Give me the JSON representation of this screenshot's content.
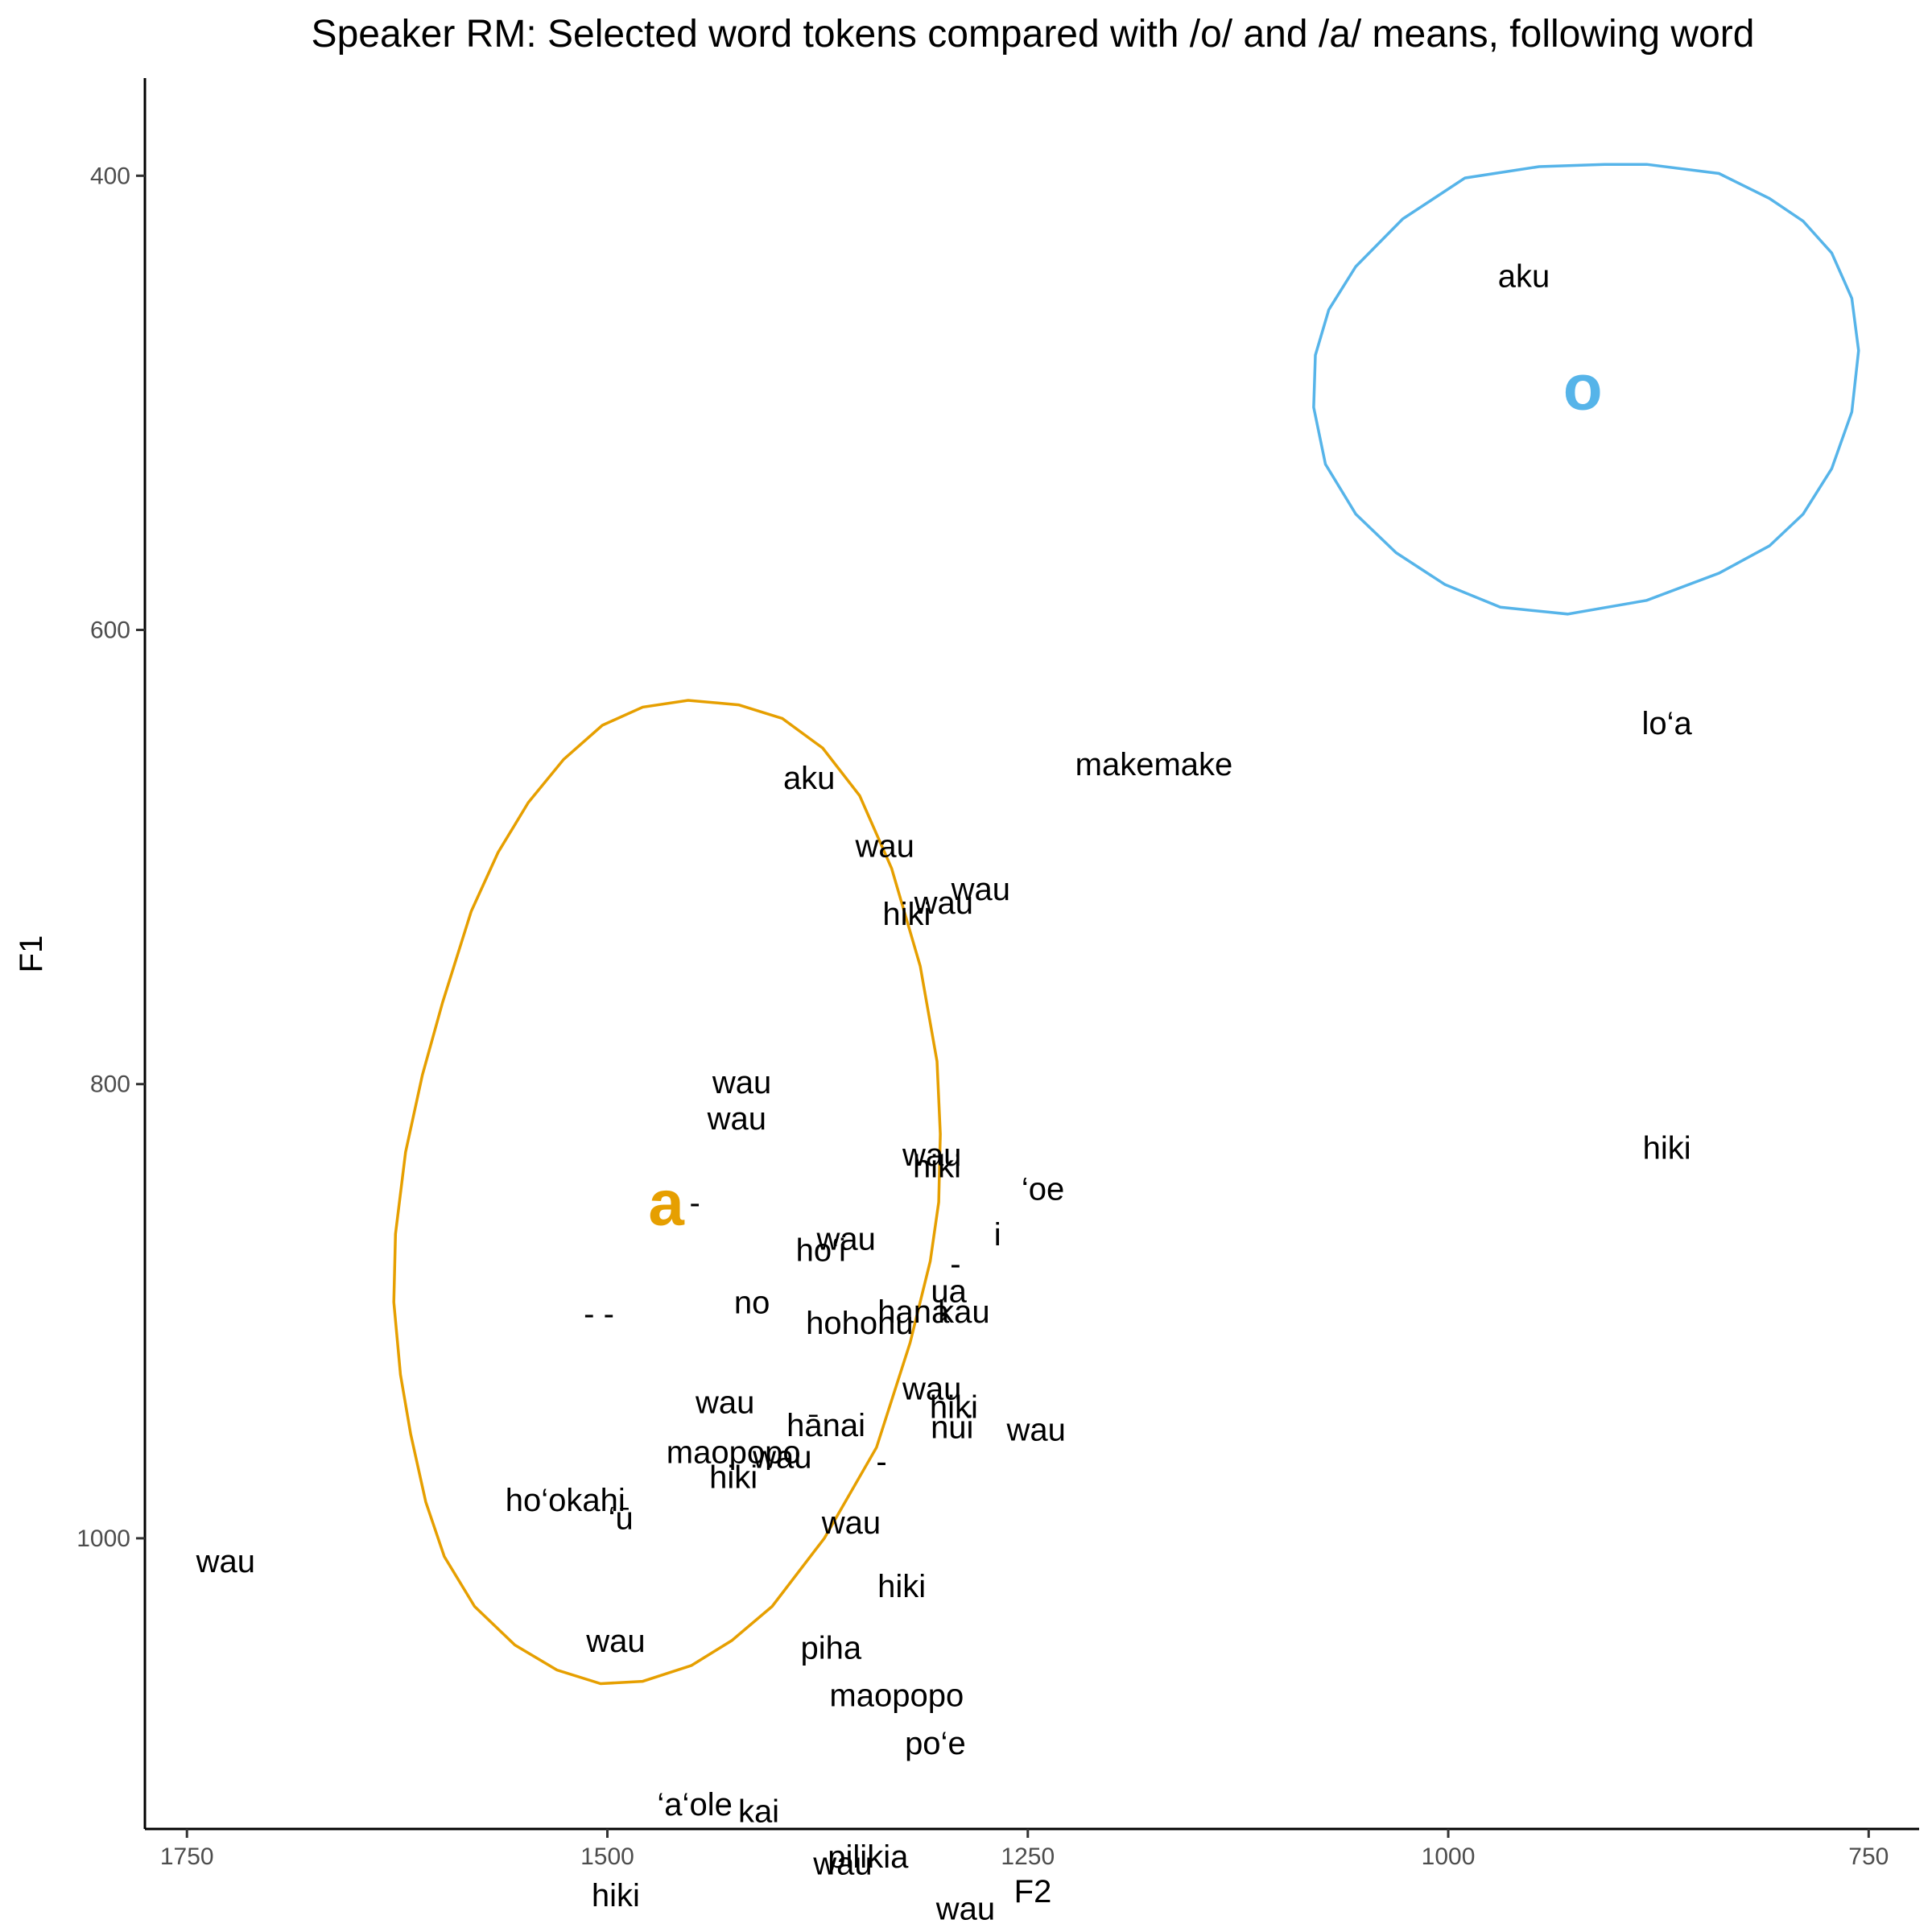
{
  "chart_data": {
    "type": "scatter",
    "title": "Speaker RM: Selected word tokens compared with /o/ and /a/ means, following word",
    "xlabel": "F2",
    "ylabel": "F1",
    "x_reversed": true,
    "y_reversed": true,
    "xlim": [
      1775,
      720
    ],
    "ylim": [
      357,
      1128
    ],
    "x_ticks": [
      1750,
      1500,
      1250,
      1000,
      750
    ],
    "y_ticks": [
      400,
      600,
      800,
      1000
    ],
    "grid": false,
    "means": [
      {
        "label": "o",
        "F2": 920,
        "F1": 493,
        "color": "#56B4E9"
      },
      {
        "label": "a",
        "F2": 1465,
        "F1": 852,
        "color": "#E69F00"
      }
    ],
    "ellipses": [
      {
        "vowel": "o",
        "color": "#56B4E9",
        "points": [
          [
            882,
            395
          ],
          [
            839,
            399
          ],
          [
            809,
            410
          ],
          [
            789,
            420
          ],
          [
            772,
            434
          ],
          [
            760,
            454
          ],
          [
            756,
            477
          ],
          [
            760,
            504
          ],
          [
            772,
            529
          ],
          [
            789,
            549
          ],
          [
            809,
            563
          ],
          [
            839,
            575
          ],
          [
            882,
            587
          ],
          [
            929,
            593
          ],
          [
            969,
            590
          ],
          [
            1002,
            580
          ],
          [
            1031,
            566
          ],
          [
            1055,
            549
          ],
          [
            1073,
            527
          ],
          [
            1080,
            502
          ],
          [
            1079,
            479
          ],
          [
            1071,
            459
          ],
          [
            1055,
            440
          ],
          [
            1027,
            419
          ],
          [
            990,
            401
          ],
          [
            946,
            396
          ],
          [
            907,
            395
          ],
          [
            882,
            395
          ]
        ]
      },
      {
        "vowel": "a",
        "color": "#E69F00",
        "points": [
          [
            1422,
            633
          ],
          [
            1396,
            639
          ],
          [
            1372,
            652
          ],
          [
            1350,
            673
          ],
          [
            1331,
            705
          ],
          [
            1314,
            748
          ],
          [
            1304,
            790
          ],
          [
            1302,
            822
          ],
          [
            1303,
            852
          ],
          [
            1308,
            878
          ],
          [
            1320,
            914
          ],
          [
            1340,
            960
          ],
          [
            1371,
            1000
          ],
          [
            1402,
            1030
          ],
          [
            1426,
            1045
          ],
          [
            1450,
            1056
          ],
          [
            1479,
            1063
          ],
          [
            1504,
            1064
          ],
          [
            1530,
            1058
          ],
          [
            1555,
            1047
          ],
          [
            1579,
            1030
          ],
          [
            1597,
            1008
          ],
          [
            1608,
            984
          ],
          [
            1617,
            954
          ],
          [
            1623,
            928
          ],
          [
            1627,
            896
          ],
          [
            1626,
            866
          ],
          [
            1620,
            830
          ],
          [
            1610,
            796
          ],
          [
            1598,
            764
          ],
          [
            1581,
            724
          ],
          [
            1565,
            698
          ],
          [
            1547,
            676
          ],
          [
            1526,
            657
          ],
          [
            1503,
            642
          ],
          [
            1479,
            634
          ],
          [
            1452,
            631
          ],
          [
            1422,
            633
          ]
        ]
      }
    ],
    "points": [
      {
        "label": "aku",
        "F2": 955,
        "F1": 444
      },
      {
        "label": "lo‘a",
        "F2": 870,
        "F1": 641
      },
      {
        "label": "makemake",
        "F2": 1175,
        "F1": 659
      },
      {
        "label": "aku",
        "F2": 1380,
        "F1": 665
      },
      {
        "label": "wau",
        "F2": 1335,
        "F1": 695
      },
      {
        "label": "wau",
        "F2": 1278,
        "F1": 714
      },
      {
        "label": "hiki",
        "F2": 1322,
        "F1": 725
      },
      {
        "label": "wau",
        "F2": 1300,
        "F1": 720
      },
      {
        "label": "wau",
        "F2": 1420,
        "F1": 799
      },
      {
        "label": "wau",
        "F2": 1423,
        "F1": 815
      },
      {
        "label": "hiki",
        "F2": 870,
        "F1": 828
      },
      {
        "label": "wau",
        "F2": 1307,
        "F1": 831
      },
      {
        "label": "hiki",
        "F2": 1304,
        "F1": 836
      },
      {
        "label": "‘oe",
        "F2": 1241,
        "F1": 846
      },
      {
        "label": "-",
        "F2": 1448,
        "F1": 852
      },
      {
        "label": "wau",
        "F2": 1358,
        "F1": 868
      },
      {
        "label": "ho‘i",
        "F2": 1373,
        "F1": 873
      },
      {
        "label": "i",
        "F2": 1268,
        "F1": 866
      },
      {
        "label": "-",
        "F2": 1293,
        "F1": 879
      },
      {
        "label": "ua",
        "F2": 1297,
        "F1": 891
      },
      {
        "label": "no",
        "F2": 1414,
        "F1": 896
      },
      {
        "label": "- -",
        "F2": 1505,
        "F1": 901
      },
      {
        "label": "hana",
        "F2": 1318,
        "F1": 900
      },
      {
        "label": "kau",
        "F2": 1288,
        "F1": 900
      },
      {
        "label": "hohonu",
        "F2": 1350,
        "F1": 905
      },
      {
        "label": "wau",
        "F2": 1307,
        "F1": 934
      },
      {
        "label": "hiki",
        "F2": 1294,
        "F1": 942
      },
      {
        "label": "wau",
        "F2": 1430,
        "F1": 940
      },
      {
        "label": "hānai",
        "F2": 1370,
        "F1": 950
      },
      {
        "label": "nui",
        "F2": 1295,
        "F1": 951
      },
      {
        "label": "wau",
        "F2": 1245,
        "F1": 952
      },
      {
        "label": "maopopo",
        "F2": 1425,
        "F1": 962
      },
      {
        "label": "wau",
        "F2": 1396,
        "F1": 964
      },
      {
        "label": "-",
        "F2": 1337,
        "F1": 966
      },
      {
        "label": "hiki",
        "F2": 1425,
        "F1": 973
      },
      {
        "label": "ho‘okahi",
        "F2": 1525,
        "F1": 983
      },
      {
        "label": "‘ū",
        "F2": 1492,
        "F1": 991
      },
      {
        "label": "wau",
        "F2": 1355,
        "F1": 993
      },
      {
        "label": "hiki",
        "F2": 1325,
        "F1": 1021
      },
      {
        "label": "wau",
        "F2": 1495,
        "F1": 1045
      },
      {
        "label": "piha",
        "F2": 1367,
        "F1": 1048
      },
      {
        "label": "wau",
        "F2": 1727,
        "F1": 1010
      },
      {
        "label": "maopopo",
        "F2": 1328,
        "F1": 1069
      },
      {
        "label": "po‘e",
        "F2": 1305,
        "F1": 1090
      },
      {
        "label": "‘a‘ole",
        "F2": 1448,
        "F1": 1117
      },
      {
        "label": "kai",
        "F2": 1410,
        "F1": 1120
      },
      {
        "label": "pilikia",
        "F2": 1345,
        "F1": 1140
      },
      {
        "label": "wau",
        "F2": 1360,
        "F1": 1143
      },
      {
        "label": "hiki",
        "F2": 1495,
        "F1": 1157
      },
      {
        "label": "wau",
        "F2": 1287,
        "F1": 1163
      }
    ]
  }
}
